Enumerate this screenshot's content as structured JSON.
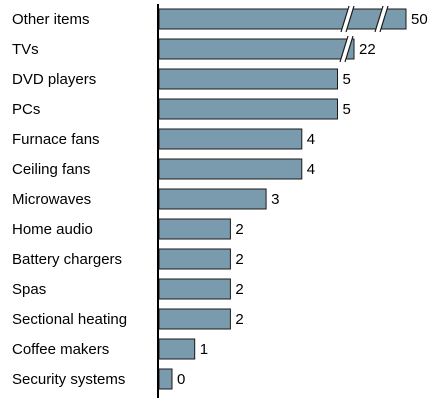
{
  "chart_data": {
    "type": "bar",
    "orientation": "horizontal",
    "categories": [
      "Other items",
      "TVs",
      "DVD players",
      "PCs",
      "Furnace fans",
      "Ceiling fans",
      "Microwaves",
      "Home audio",
      "Battery chargers",
      "Spas",
      "Sectional heating",
      "Coffee makers",
      "Security systems"
    ],
    "values": [
      50,
      22,
      5,
      5,
      4,
      4,
      3,
      2,
      2,
      2,
      2,
      1,
      0
    ],
    "value_labels": [
      "50",
      "22",
      "5",
      "5",
      "4",
      "4",
      "3",
      "2",
      "2",
      "2",
      "2",
      "1",
      "0"
    ],
    "broken_bars": [
      "Other items",
      "TVs"
    ],
    "bar_color": "#7a9aae",
    "title": "",
    "xlabel": "",
    "ylabel": "",
    "grid": false,
    "legend": "none"
  }
}
